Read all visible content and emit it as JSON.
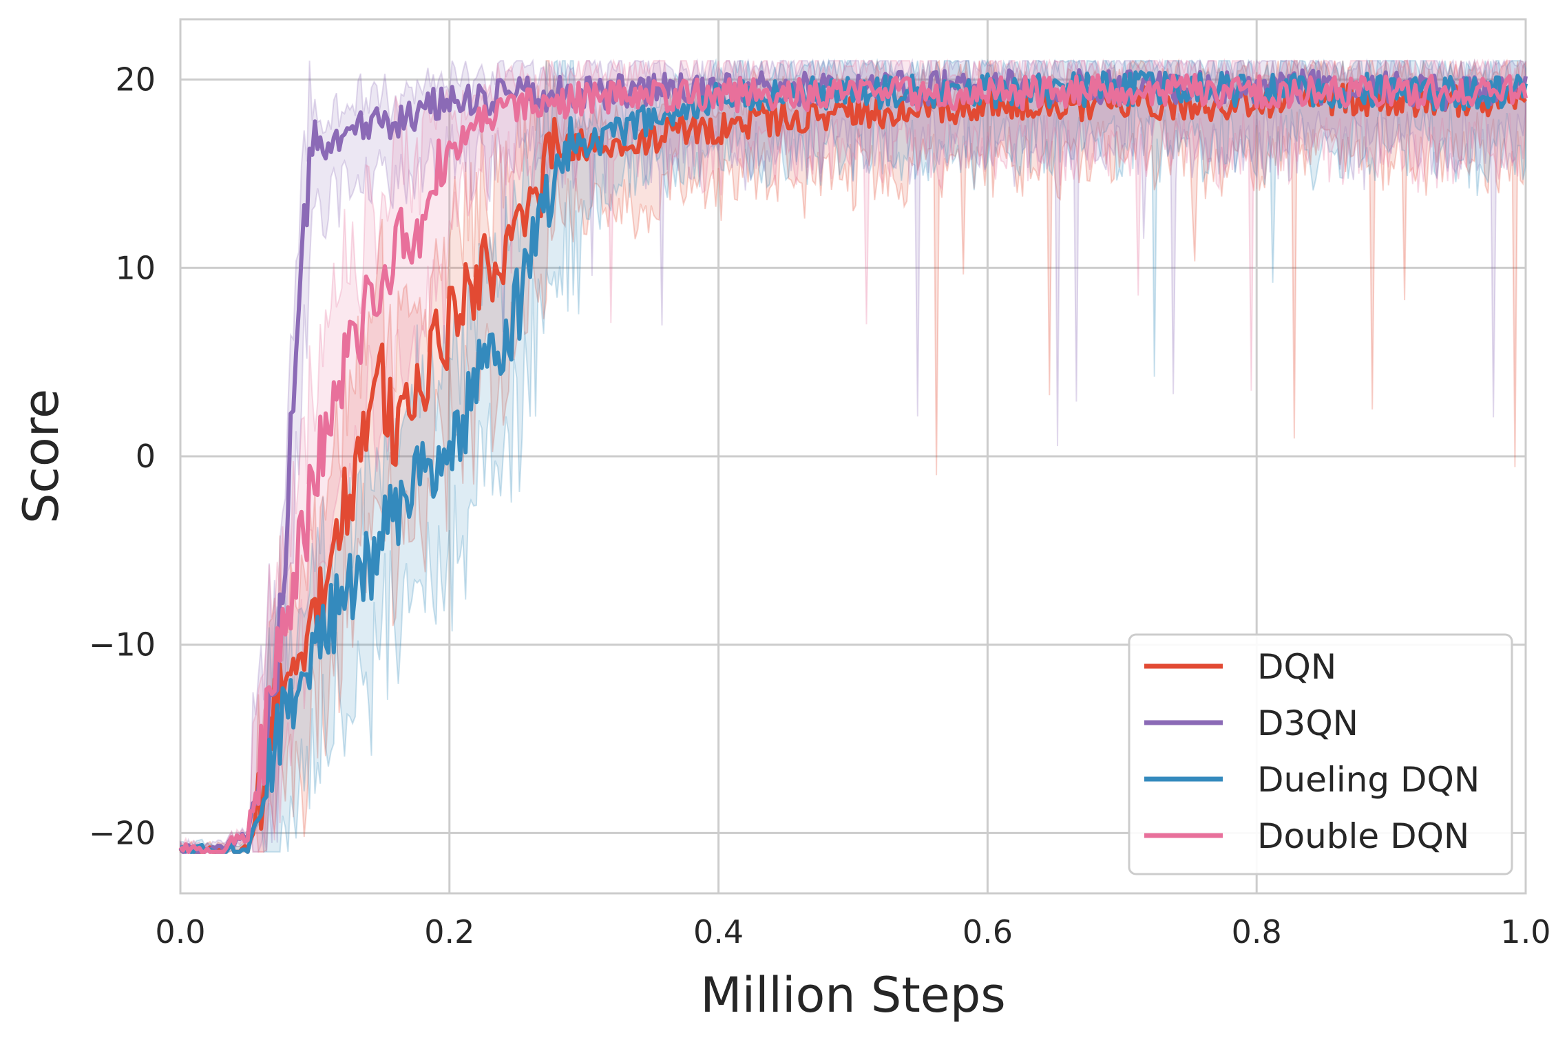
{
  "chart_data": {
    "type": "line",
    "title": "",
    "xlabel": "Million Steps",
    "ylabel": "Score",
    "xlim": [
      0.0,
      1.0
    ],
    "ylim": [
      -23.2,
      23.2
    ],
    "grid": true,
    "legend_position": "lower-right",
    "x_ticks": [
      "0.0",
      "0.2",
      "0.4",
      "0.6",
      "0.8",
      "1.0"
    ],
    "y_ticks": [
      "−20",
      "−10",
      "0",
      "10",
      "20"
    ],
    "x_tick_values": [
      0.0,
      0.2,
      0.4,
      0.6,
      0.8,
      1.0
    ],
    "y_tick_values": [
      -20,
      -10,
      0,
      10,
      20
    ],
    "shaded_band": "min–max range across runs",
    "series": [
      {
        "name": "DQN",
        "color": "#e24a33",
        "points": [
          [
            0.0,
            -21
          ],
          [
            0.03,
            -21
          ],
          [
            0.05,
            -21
          ],
          [
            0.06,
            -18
          ],
          [
            0.07,
            -14
          ],
          [
            0.08,
            -12
          ],
          [
            0.09,
            -11
          ],
          [
            0.1,
            -8
          ],
          [
            0.11,
            -6
          ],
          [
            0.12,
            -3
          ],
          [
            0.13,
            -1
          ],
          [
            0.14,
            2
          ],
          [
            0.15,
            4
          ],
          [
            0.16,
            1
          ],
          [
            0.17,
            3
          ],
          [
            0.18,
            4
          ],
          [
            0.19,
            6
          ],
          [
            0.2,
            7
          ],
          [
            0.21,
            8
          ],
          [
            0.22,
            9
          ],
          [
            0.23,
            10
          ],
          [
            0.24,
            11
          ],
          [
            0.25,
            13
          ],
          [
            0.26,
            14
          ],
          [
            0.27,
            15
          ],
          [
            0.28,
            16
          ],
          [
            0.3,
            16.5
          ],
          [
            0.35,
            17
          ],
          [
            0.4,
            17.5
          ],
          [
            0.45,
            18
          ],
          [
            0.5,
            18.2
          ],
          [
            0.55,
            18.5
          ],
          [
            0.6,
            18.6
          ],
          [
            0.65,
            18.6
          ],
          [
            0.7,
            18.8
          ],
          [
            0.75,
            18.8
          ],
          [
            0.78,
            18.5
          ],
          [
            0.8,
            18.9
          ],
          [
            0.85,
            19
          ],
          [
            0.9,
            19
          ],
          [
            0.95,
            18.9
          ],
          [
            1.0,
            19
          ]
        ]
      },
      {
        "name": "D3QN",
        "color": "#8b6ab6",
        "points": [
          [
            0.0,
            -21
          ],
          [
            0.03,
            -21
          ],
          [
            0.05,
            -20
          ],
          [
            0.06,
            -17
          ],
          [
            0.07,
            -13
          ],
          [
            0.08,
            -3
          ],
          [
            0.085,
            5
          ],
          [
            0.09,
            10
          ],
          [
            0.095,
            15
          ],
          [
            0.1,
            17
          ],
          [
            0.11,
            16
          ],
          [
            0.12,
            17
          ],
          [
            0.13,
            17.5
          ],
          [
            0.14,
            17.5
          ],
          [
            0.15,
            17.8
          ],
          [
            0.16,
            17.5
          ],
          [
            0.17,
            18
          ],
          [
            0.18,
            18.5
          ],
          [
            0.2,
            19
          ],
          [
            0.22,
            19
          ],
          [
            0.25,
            19.2
          ],
          [
            0.3,
            19.3
          ],
          [
            0.35,
            19.4
          ],
          [
            0.4,
            19.5
          ],
          [
            0.5,
            19.5
          ],
          [
            0.6,
            19.6
          ],
          [
            0.7,
            19.6
          ],
          [
            0.8,
            19.6
          ],
          [
            0.9,
            19.6
          ],
          [
            0.94,
            19.3
          ],
          [
            1.0,
            19.6
          ]
        ]
      },
      {
        "name": "Dueling DQN",
        "color": "#348abd",
        "points": [
          [
            0.0,
            -21
          ],
          [
            0.03,
            -21
          ],
          [
            0.05,
            -21
          ],
          [
            0.06,
            -19
          ],
          [
            0.07,
            -16
          ],
          [
            0.08,
            -13
          ],
          [
            0.09,
            -11
          ],
          [
            0.1,
            -10
          ],
          [
            0.11,
            -9
          ],
          [
            0.12,
            -8
          ],
          [
            0.13,
            -7
          ],
          [
            0.14,
            -6
          ],
          [
            0.15,
            -4
          ],
          [
            0.16,
            -3
          ],
          [
            0.17,
            -2
          ],
          [
            0.18,
            -1
          ],
          [
            0.19,
            0
          ],
          [
            0.2,
            1
          ],
          [
            0.21,
            2
          ],
          [
            0.22,
            4
          ],
          [
            0.23,
            5
          ],
          [
            0.24,
            6
          ],
          [
            0.25,
            8
          ],
          [
            0.26,
            10
          ],
          [
            0.27,
            13
          ],
          [
            0.28,
            15
          ],
          [
            0.3,
            16.5
          ],
          [
            0.35,
            18
          ],
          [
            0.4,
            19
          ],
          [
            0.45,
            19.2
          ],
          [
            0.5,
            19.3
          ],
          [
            0.6,
            19.4
          ],
          [
            0.7,
            19.5
          ],
          [
            0.8,
            19.5
          ],
          [
            0.9,
            19.4
          ],
          [
            0.96,
            19.2
          ],
          [
            1.0,
            19.4
          ]
        ]
      },
      {
        "name": "Double DQN",
        "color": "#e8709b",
        "points": [
          [
            0.0,
            -21
          ],
          [
            0.03,
            -21
          ],
          [
            0.05,
            -20
          ],
          [
            0.06,
            -16
          ],
          [
            0.07,
            -12
          ],
          [
            0.08,
            -8
          ],
          [
            0.09,
            -5
          ],
          [
            0.1,
            -1
          ],
          [
            0.11,
            2
          ],
          [
            0.12,
            4
          ],
          [
            0.13,
            6
          ],
          [
            0.14,
            8
          ],
          [
            0.15,
            10
          ],
          [
            0.16,
            11
          ],
          [
            0.17,
            12
          ],
          [
            0.18,
            13
          ],
          [
            0.19,
            15
          ],
          [
            0.2,
            16
          ],
          [
            0.21,
            17
          ],
          [
            0.22,
            17.5
          ],
          [
            0.25,
            18.5
          ],
          [
            0.3,
            19
          ],
          [
            0.35,
            19.2
          ],
          [
            0.4,
            19.2
          ],
          [
            0.5,
            19.3
          ],
          [
            0.6,
            19.3
          ],
          [
            0.7,
            19.4
          ],
          [
            0.8,
            19.4
          ],
          [
            0.9,
            19.4
          ],
          [
            1.0,
            19.4
          ]
        ]
      }
    ]
  }
}
